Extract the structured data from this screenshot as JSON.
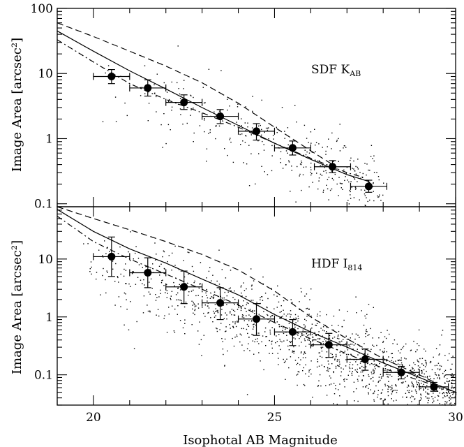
{
  "chart_data": [
    {
      "type": "scatter",
      "panel_label": "SDF K",
      "panel_label_sub": "AB",
      "ylabel": "Image Area [arcsec²]",
      "xlim": [
        19,
        30
      ],
      "ylim": [
        0.09,
        100
      ],
      "yscale": "log",
      "ytick_values": [
        0.1,
        1,
        10,
        100
      ],
      "ytick_labels": [
        "0.1",
        "1",
        "10",
        "100"
      ],
      "binned_points": [
        {
          "x": 20.5,
          "y": 9.0,
          "xerr": 0.5,
          "ylo": 7.0,
          "yhi": 11.5
        },
        {
          "x": 21.5,
          "y": 6.0,
          "xerr": 0.5,
          "ylo": 4.5,
          "yhi": 8.0
        },
        {
          "x": 22.5,
          "y": 3.6,
          "xerr": 0.5,
          "ylo": 2.8,
          "yhi": 4.7
        },
        {
          "x": 23.5,
          "y": 2.2,
          "xerr": 0.5,
          "ylo": 1.7,
          "yhi": 2.8
        },
        {
          "x": 24.5,
          "y": 1.3,
          "xerr": 0.5,
          "ylo": 0.95,
          "yhi": 1.7
        },
        {
          "x": 25.5,
          "y": 0.72,
          "xerr": 0.5,
          "ylo": 0.56,
          "yhi": 0.92
        },
        {
          "x": 26.6,
          "y": 0.37,
          "xerr": 0.5,
          "ylo": 0.3,
          "yhi": 0.46
        },
        {
          "x": 27.6,
          "y": 0.185,
          "xerr": 0.5,
          "ylo": 0.15,
          "yhi": 0.23
        }
      ],
      "curves": [
        {
          "style": "solid",
          "x": [
            19,
            20,
            21,
            22,
            23,
            24,
            25,
            26,
            27,
            27.6
          ],
          "y": [
            45,
            22,
            11,
            5.8,
            3.0,
            1.6,
            0.85,
            0.48,
            0.28,
            0.22
          ]
        },
        {
          "style": "dashed",
          "x": [
            19,
            20,
            21,
            22,
            23,
            24,
            25,
            26,
            26.6
          ],
          "y": [
            60,
            37,
            22,
            13,
            7.2,
            3.5,
            1.5,
            0.65,
            0.4
          ]
        },
        {
          "style": "dashdot",
          "x": [
            19,
            20,
            21,
            22,
            23,
            24,
            25,
            26,
            27,
            27.5
          ],
          "y": [
            33,
            15,
            7.0,
            4.0,
            2.5,
            1.5,
            0.85,
            0.5,
            0.3,
            0.25
          ]
        }
      ],
      "scatter_region": {
        "x": [
          20,
          28
        ],
        "ytrend": [
          [
            20,
            8.5
          ],
          [
            22,
            3.8
          ],
          [
            24,
            1.5
          ],
          [
            26,
            0.5
          ],
          [
            28,
            0.15
          ]
        ],
        "count": 360,
        "spread": 0.35
      }
    },
    {
      "type": "scatter",
      "panel_label": "HDF I",
      "panel_label_sub": "814",
      "ylabel": "Image Area [arcsec²]",
      "xlabel": "Isophotal AB Magnitude",
      "xlim": [
        19,
        30
      ],
      "ylim": [
        0.03,
        80
      ],
      "yscale": "log",
      "ytick_values": [
        0.1,
        1,
        10
      ],
      "ytick_labels": [
        "0.1",
        "1",
        "10"
      ],
      "xtick_values": [
        20,
        25,
        30
      ],
      "xtick_labels": [
        "20",
        "25",
        "30"
      ],
      "binned_points": [
        {
          "x": 20.5,
          "y": 11.0,
          "xerr": 0.5,
          "ylo": 5.0,
          "yhi": 24.0
        },
        {
          "x": 21.5,
          "y": 5.8,
          "xerr": 0.5,
          "ylo": 3.2,
          "yhi": 10.5
        },
        {
          "x": 22.5,
          "y": 3.3,
          "xerr": 0.5,
          "ylo": 1.7,
          "yhi": 6.2
        },
        {
          "x": 23.5,
          "y": 1.75,
          "xerr": 0.5,
          "ylo": 0.9,
          "yhi": 3.2
        },
        {
          "x": 24.5,
          "y": 0.92,
          "xerr": 0.5,
          "ylo": 0.48,
          "yhi": 1.7
        },
        {
          "x": 25.5,
          "y": 0.55,
          "xerr": 0.5,
          "ylo": 0.32,
          "yhi": 0.9
        },
        {
          "x": 26.5,
          "y": 0.33,
          "xerr": 0.5,
          "ylo": 0.2,
          "yhi": 0.52
        },
        {
          "x": 27.5,
          "y": 0.185,
          "xerr": 0.5,
          "ylo": 0.12,
          "yhi": 0.28
        },
        {
          "x": 28.5,
          "y": 0.11,
          "xerr": 0.5,
          "ylo": 0.085,
          "yhi": 0.14
        },
        {
          "x": 29.4,
          "y": 0.062,
          "xerr": 0.4,
          "ylo": 0.052,
          "yhi": 0.074
        }
      ],
      "curves": [
        {
          "style": "solid",
          "x": [
            19,
            20,
            21,
            22,
            23,
            24,
            25,
            26,
            27,
            28,
            29,
            30
          ],
          "y": [
            72,
            30,
            15,
            8.5,
            4.5,
            2.4,
            1.1,
            0.55,
            0.3,
            0.16,
            0.09,
            0.05
          ]
        },
        {
          "style": "dashed",
          "x": [
            19,
            20,
            21,
            22,
            23,
            24,
            25,
            26,
            27,
            28,
            29,
            29.4
          ],
          "y": [
            80,
            50,
            32,
            20,
            12,
            6.5,
            2.8,
            1.0,
            0.42,
            0.19,
            0.1,
            0.075
          ]
        },
        {
          "style": "dashdot",
          "x": [
            19,
            20,
            21,
            22,
            23,
            24,
            25,
            26,
            27,
            28,
            29,
            30
          ],
          "y": [
            55,
            20,
            10,
            5.5,
            3.0,
            1.6,
            0.8,
            0.42,
            0.23,
            0.13,
            0.08,
            0.05
          ]
        }
      ],
      "scatter_region": {
        "x": [
          19.5,
          30
        ],
        "ytrend": [
          [
            20,
            10
          ],
          [
            22,
            3.5
          ],
          [
            24,
            1.2
          ],
          [
            26,
            0.42
          ],
          [
            28,
            0.13
          ],
          [
            30,
            0.05
          ]
        ],
        "count": 1400,
        "spread": 0.45
      }
    }
  ]
}
